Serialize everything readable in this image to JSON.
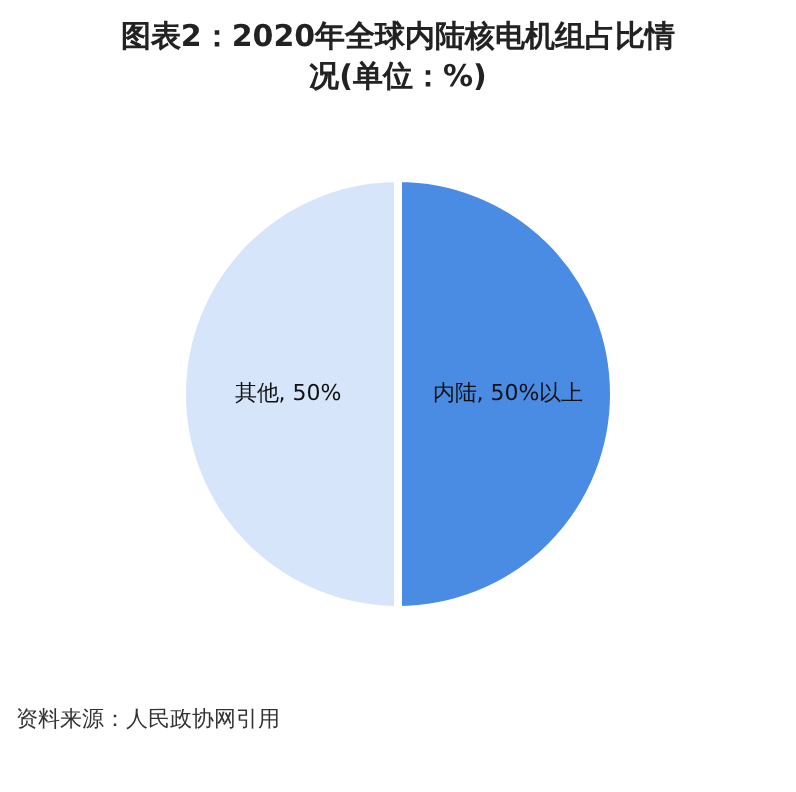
{
  "chart_data": {
    "type": "pie",
    "title": "图表2：2020年全球内陆核电机组占比情况(单位：%)",
    "categories": [
      "内陆",
      "其他"
    ],
    "values": [
      50,
      50
    ],
    "colors": [
      "#4a8be4",
      "#d6e5fa"
    ],
    "value_labels": [
      "50%以上",
      "50%"
    ],
    "annotations": [
      "资料来源：人民政协网引用"
    ]
  }
}
